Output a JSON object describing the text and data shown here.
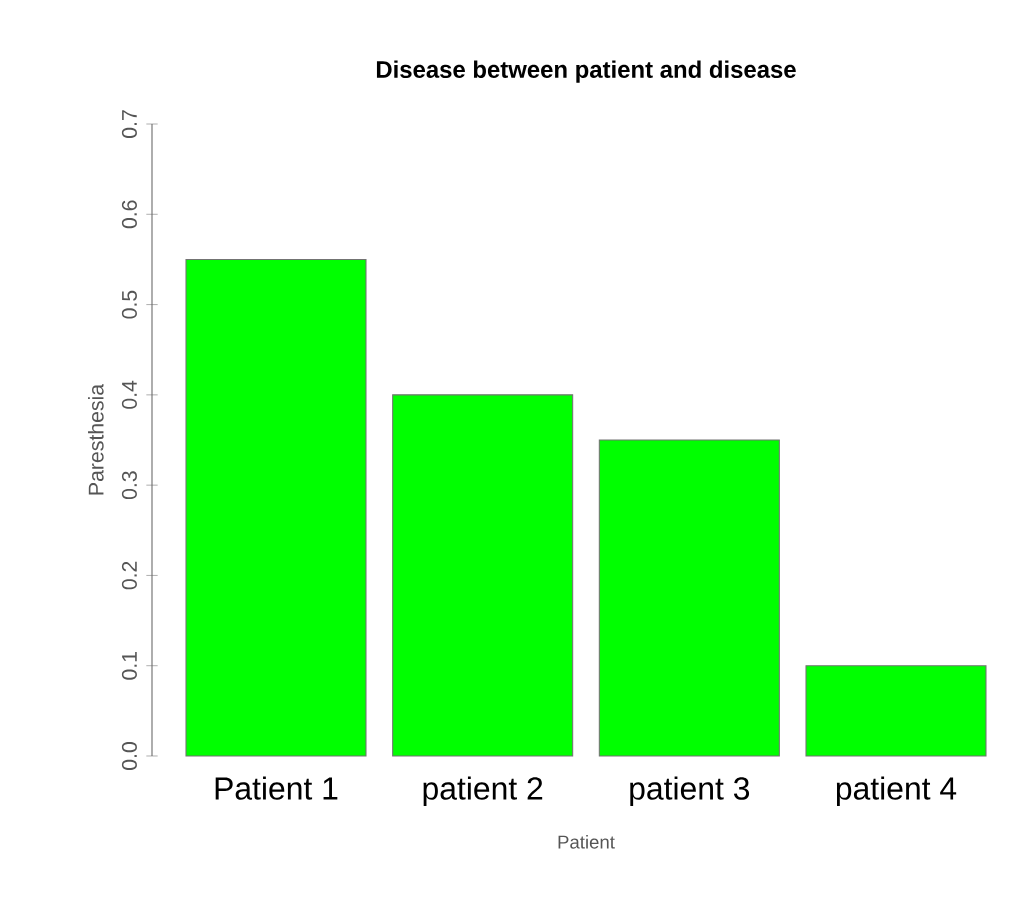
{
  "chart_data": {
    "type": "bar",
    "title": "Disease between patient and disease",
    "xlabel": "Patient",
    "ylabel": "Paresthesia",
    "categories": [
      "Patient 1",
      "patient 2",
      "patient 3",
      "patient 4"
    ],
    "values": [
      0.55,
      0.4,
      0.35,
      0.1
    ],
    "color": "#00ff00",
    "ylim": [
      0,
      0.7
    ],
    "yticks": [
      {
        "value": 0,
        "label": "0.0"
      },
      0.1,
      0.2,
      0.3,
      0.4,
      0.5,
      0.6,
      0.7
    ],
    "grid": false
  }
}
